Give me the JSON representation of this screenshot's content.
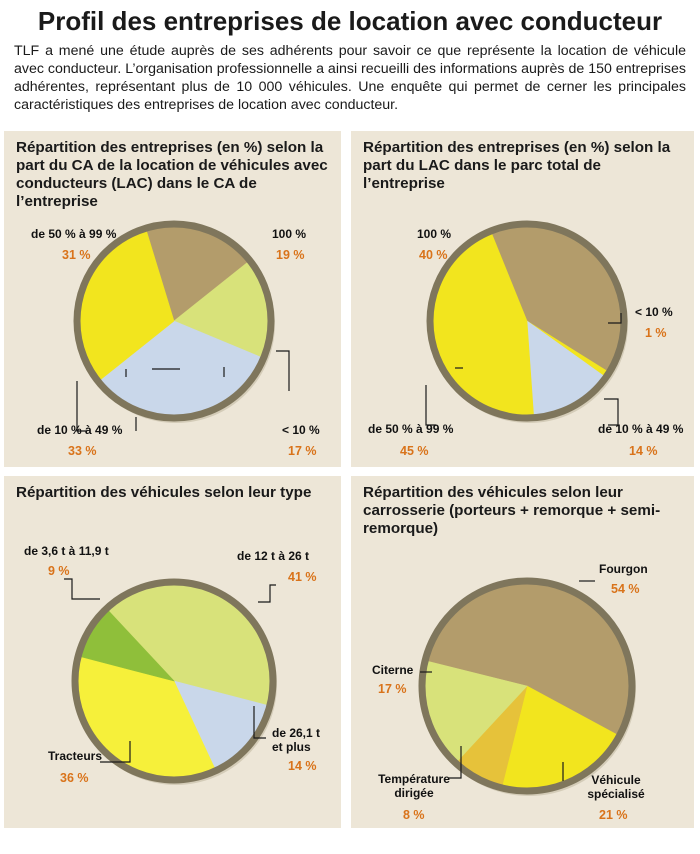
{
  "header": {
    "title": "Profil des entreprises de location avec conducteur",
    "intro": "TLF a mené une étude auprès de ses adhérents pour savoir ce que représente la location de véhicule avec conducteur. L’organisation professionnelle a ainsi recueilli des informations auprès de 150 entreprises adhérentes, représentant plus de 10 000 véhicules. Une enquête qui permet de cerner les principales caractéristiques des entreprises de location avec conducteur."
  },
  "colors": {
    "brown": "#b39c6b",
    "yellow": "#f2e51e",
    "yellow_light": "#f6f03a",
    "lime": "#d8e27a",
    "blue": "#c9d7ea",
    "green": "#8fbf3a",
    "gold": "#e6c23a",
    "rim": "#7f765c",
    "percent": "#d9731a",
    "panel_bg": "#ede6d7"
  },
  "chart_data": [
    {
      "type": "pie",
      "title": "Répartition des entreprises (en %) selon la part du CA de la location de véhicules avec conducteurs (LAC) dans le CA de l’entreprise",
      "slices": [
        {
          "label": "100 %",
          "value": 19,
          "value_label": "19 %",
          "color": "#b39c6b"
        },
        {
          "label": "< 10 %",
          "value": 17,
          "value_label": "17 %",
          "color": "#d8e27a"
        },
        {
          "label": "de 10 % à 49 %",
          "value": 33,
          "value_label": "33 %",
          "color": "#c9d7ea"
        },
        {
          "label": "de 50 % à 99 %",
          "value": 31,
          "value_label": "31 %",
          "color": "#f2e51e"
        }
      ]
    },
    {
      "type": "pie",
      "title": "Répartition des entreprises (en %) selon la part du LAC dans le parc total de l’entreprise",
      "slices": [
        {
          "label": "100 %",
          "value": 40,
          "value_label": "40 %",
          "color": "#b39c6b"
        },
        {
          "label": "< 10 %",
          "value": 1,
          "value_label": "1 %",
          "color": "#f2e51e"
        },
        {
          "label": "de 10 % à 49 %",
          "value": 14,
          "value_label": "14 %",
          "color": "#c9d7ea"
        },
        {
          "label": "de 50 % à 99 %",
          "value": 45,
          "value_label": "45 %",
          "color": "#f2e51e"
        }
      ]
    },
    {
      "type": "pie",
      "title": "Répartition des véhicules selon leur type",
      "slices": [
        {
          "label": "de 12 t à 26 t",
          "value": 41,
          "value_label": "41 %",
          "color": "#d8e27a"
        },
        {
          "label": "de 26,1 t et plus",
          "value": 14,
          "value_label": "14 %",
          "color": "#c9d7ea"
        },
        {
          "label": "Tracteurs",
          "value": 36,
          "value_label": "36 %",
          "color": "#f6f03a"
        },
        {
          "label": "de 3,6 t à 11,9 t",
          "value": 9,
          "value_label": "9 %",
          "color": "#8fbf3a"
        }
      ]
    },
    {
      "type": "pie",
      "title": "Répartition des véhicules selon leur carrosserie (porteurs + remorque + semi-remorque)",
      "slices": [
        {
          "label": "Fourgon",
          "value": 54,
          "value_label": "54 %",
          "color": "#b39c6b"
        },
        {
          "label": "Véhicule spécialisé",
          "value": 21,
          "value_label": "21 %",
          "color": "#f2e51e"
        },
        {
          "label": "Température dirigée",
          "value": 8,
          "value_label": "8 %",
          "color": "#e6c23a"
        },
        {
          "label": "Citerne",
          "value": 17,
          "value_label": "17 %",
          "color": "#d8e27a"
        }
      ]
    }
  ]
}
